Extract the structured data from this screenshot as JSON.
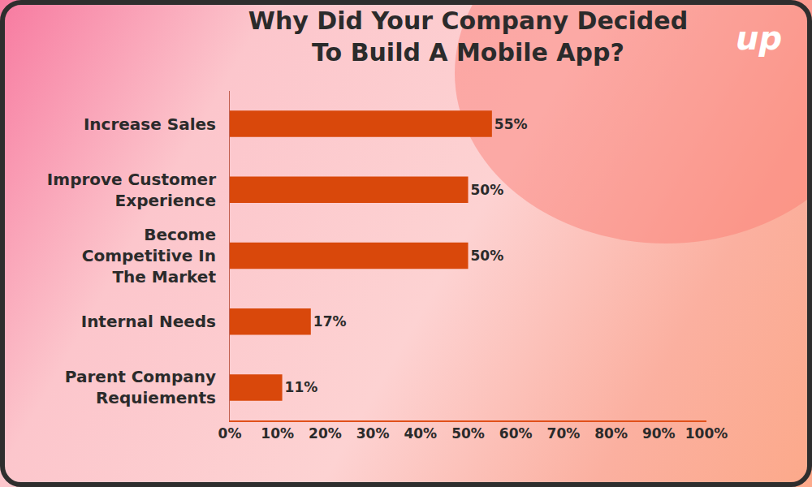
{
  "chart_data": {
    "type": "bar",
    "title": "Why Did Your Company Decided To Build A Mobile App?",
    "orientation": "horizontal",
    "categories": [
      "Increase Sales",
      "Improve Customer Experience",
      "Become Competitive In The Market",
      "Internal Needs",
      "Parent Company Requiements"
    ],
    "values": [
      55,
      50,
      50,
      17,
      11
    ],
    "value_labels": [
      "55%",
      "50%",
      "50%",
      "17%",
      "11%"
    ],
    "data_labels": true,
    "color": "#d9480b",
    "xlim": [
      0,
      100
    ],
    "xticks": [
      {
        "value": 0,
        "label": "0%"
      },
      {
        "value": 10,
        "label": "10%"
      },
      {
        "value": 20,
        "label": "20%"
      },
      {
        "value": 30,
        "label": "30%"
      },
      {
        "value": 40,
        "label": "40%"
      },
      {
        "value": 50,
        "label": "50%"
      },
      {
        "value": 60,
        "label": "60%"
      },
      {
        "value": 70,
        "label": "70%"
      },
      {
        "value": 80,
        "label": "80%"
      },
      {
        "value": 90,
        "label": "90%"
      },
      {
        "value": 100,
        "label": "100%"
      }
    ],
    "grid": false,
    "annotations": [
      {
        "text": "up"
      }
    ]
  }
}
